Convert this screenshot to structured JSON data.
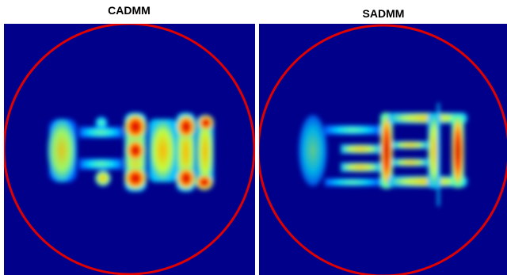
{
  "panels": [
    {
      "title": "CADMM"
    },
    {
      "title": "SADMM"
    }
  ]
}
